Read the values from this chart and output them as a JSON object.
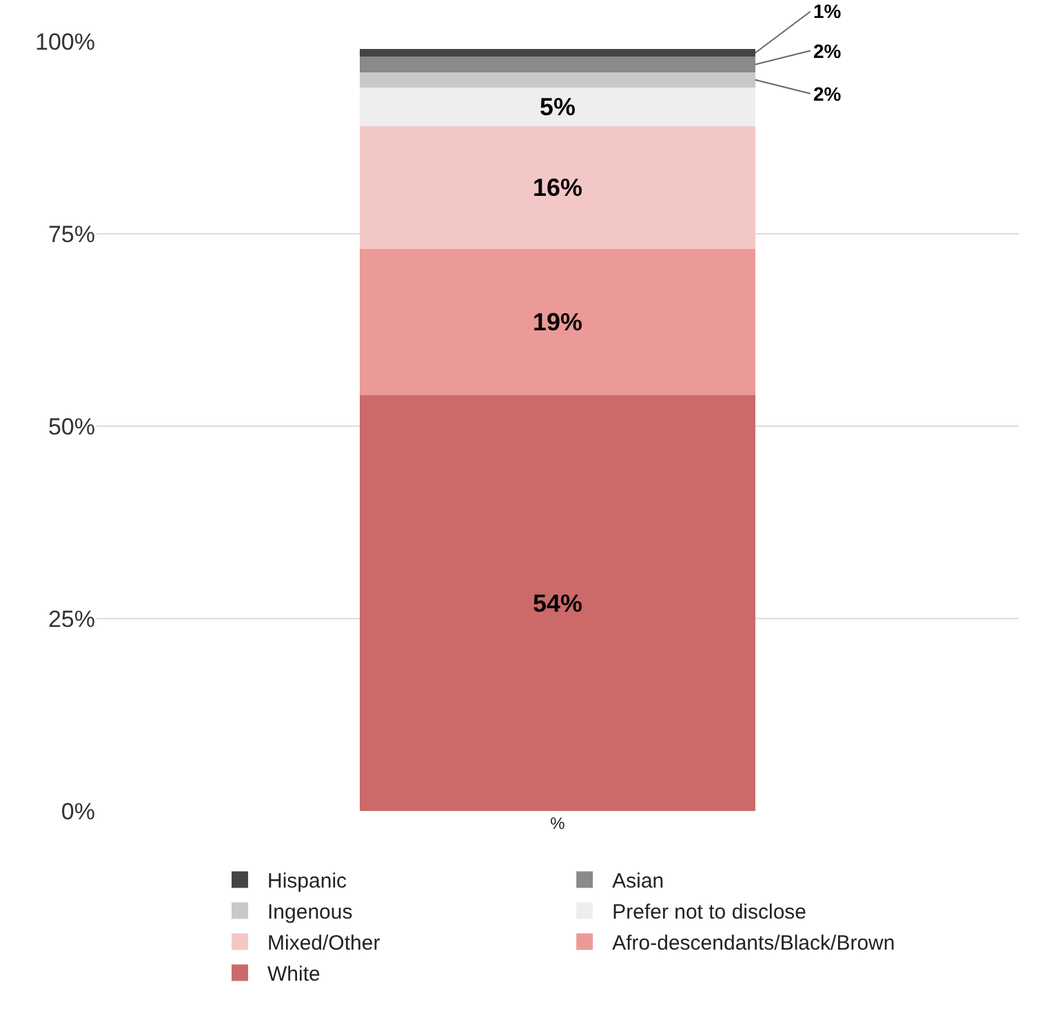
{
  "chart_data": {
    "type": "bar",
    "stacked": true,
    "categories": [
      "%"
    ],
    "series": [
      {
        "name": "White",
        "color": "#cc6a6a",
        "values": [
          54
        ],
        "value_labels": [
          "54%"
        ]
      },
      {
        "name": "Afro-descendants/Black/Brown",
        "color": "#eb9a97",
        "values": [
          19
        ],
        "value_labels": [
          "19%"
        ]
      },
      {
        "name": "Mixed/Other",
        "color": "#f4c7c7",
        "values": [
          16
        ],
        "value_labels": [
          "16%"
        ]
      },
      {
        "name": "Prefer not to disclose",
        "color": "#eeeeee",
        "values": [
          5
        ],
        "value_labels": [
          "5%"
        ]
      },
      {
        "name": "Ingenous",
        "color": "#c8c8c8",
        "values": [
          2
        ],
        "value_labels": [
          "2%"
        ]
      },
      {
        "name": "Asian",
        "color": "#8a8a8a",
        "values": [
          2
        ],
        "value_labels": [
          "2%"
        ]
      },
      {
        "name": "Hispanic",
        "color": "#444444",
        "values": [
          1
        ],
        "value_labels": [
          "1%"
        ]
      }
    ],
    "ylim": [
      0,
      100
    ],
    "yticks": [
      {
        "value": 0,
        "label": "0%"
      },
      {
        "value": 25,
        "label": "25%"
      },
      {
        "value": 50,
        "label": "50%"
      },
      {
        "value": 75,
        "label": "75%"
      },
      {
        "value": 100,
        "label": "100%"
      }
    ],
    "grid": "y",
    "legend": "bottom"
  }
}
